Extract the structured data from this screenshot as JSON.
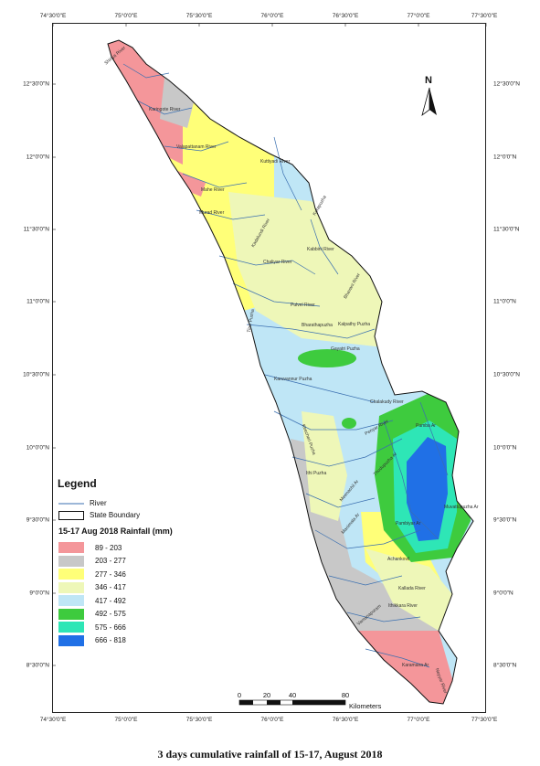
{
  "map": {
    "x_ticks": [
      "74°30'0\"E",
      "75°0'0\"E",
      "75°30'0\"E",
      "76°0'0\"E",
      "76°30'0\"E",
      "77°0'0\"E",
      "77°30'0\"E"
    ],
    "y_ticks": [
      "12°30'0\"N",
      "12°0'0\"N",
      "11°30'0\"N",
      "11°0'0\"N",
      "10°30'0\"N",
      "10°0'0\"N",
      "9°30'0\"N",
      "9°0'0\"N",
      "8°30'0\"N"
    ],
    "north_label": "N",
    "rivers": [
      "Shiriya River",
      "Karingote River",
      "Valapattanam River",
      "Kuttiyadi River",
      "Mahe River",
      "Korapuzha",
      "Murad River",
      "Bharathapuzha",
      "Chaliyar River",
      "Kadalundi River",
      "Pulvel River",
      "Bhavani River",
      "Kabbini River",
      "Kalpathy Puzha",
      "Gayatri Puzha",
      "Karuvannur Puzha",
      "Chalakudy River",
      "Periyar River",
      "Muvattupuzha Ar",
      "Meenachil Ar",
      "Manimala Ar",
      "Pamba Ar",
      "Achankovil",
      "Kallada River",
      "Ithikkara River",
      "Vamanapuram",
      "Karamana Ar",
      "Neyyar River",
      "Thodupuzha Ar",
      "Pambiyar Ar",
      "Tirur Puzha",
      "Keecheri Puzha",
      "Ithi Puzha"
    ],
    "colors": {
      "c1": "#f4969a",
      "c2": "#c8c8c8",
      "c3": "#ffff78",
      "c4": "#eef7b8",
      "c5": "#bfe6f6",
      "c6": "#3ecb3e",
      "c7": "#2ee6b6",
      "c8": "#2070e6",
      "river": "#3a6fb0",
      "boundary": "#111111"
    }
  },
  "legend": {
    "title": "Legend",
    "river": "River",
    "state_boundary": "State Boundary",
    "rainfall_title": "15-17 Aug 2018 Rainfall (mm)",
    "classes": [
      {
        "label": "89 - 203",
        "color": "#f4969a"
      },
      {
        "label": "203 - 277",
        "color": "#c8c8c8"
      },
      {
        "label": "277 - 346",
        "color": "#ffff78"
      },
      {
        "label": "346 - 417",
        "color": "#eef7b8"
      },
      {
        "label": "417 - 492",
        "color": "#bfe6f6"
      },
      {
        "label": "492 - 575",
        "color": "#3ecb3e"
      },
      {
        "label": "575 - 666",
        "color": "#2ee6b6"
      },
      {
        "label": "666 - 818",
        "color": "#2070e6"
      }
    ]
  },
  "scale": {
    "labels": [
      "0",
      "20",
      "40",
      "80"
    ],
    "unit": "Kilometers"
  },
  "caption": "3 days cumulative rainfall of 15-17, August 2018"
}
